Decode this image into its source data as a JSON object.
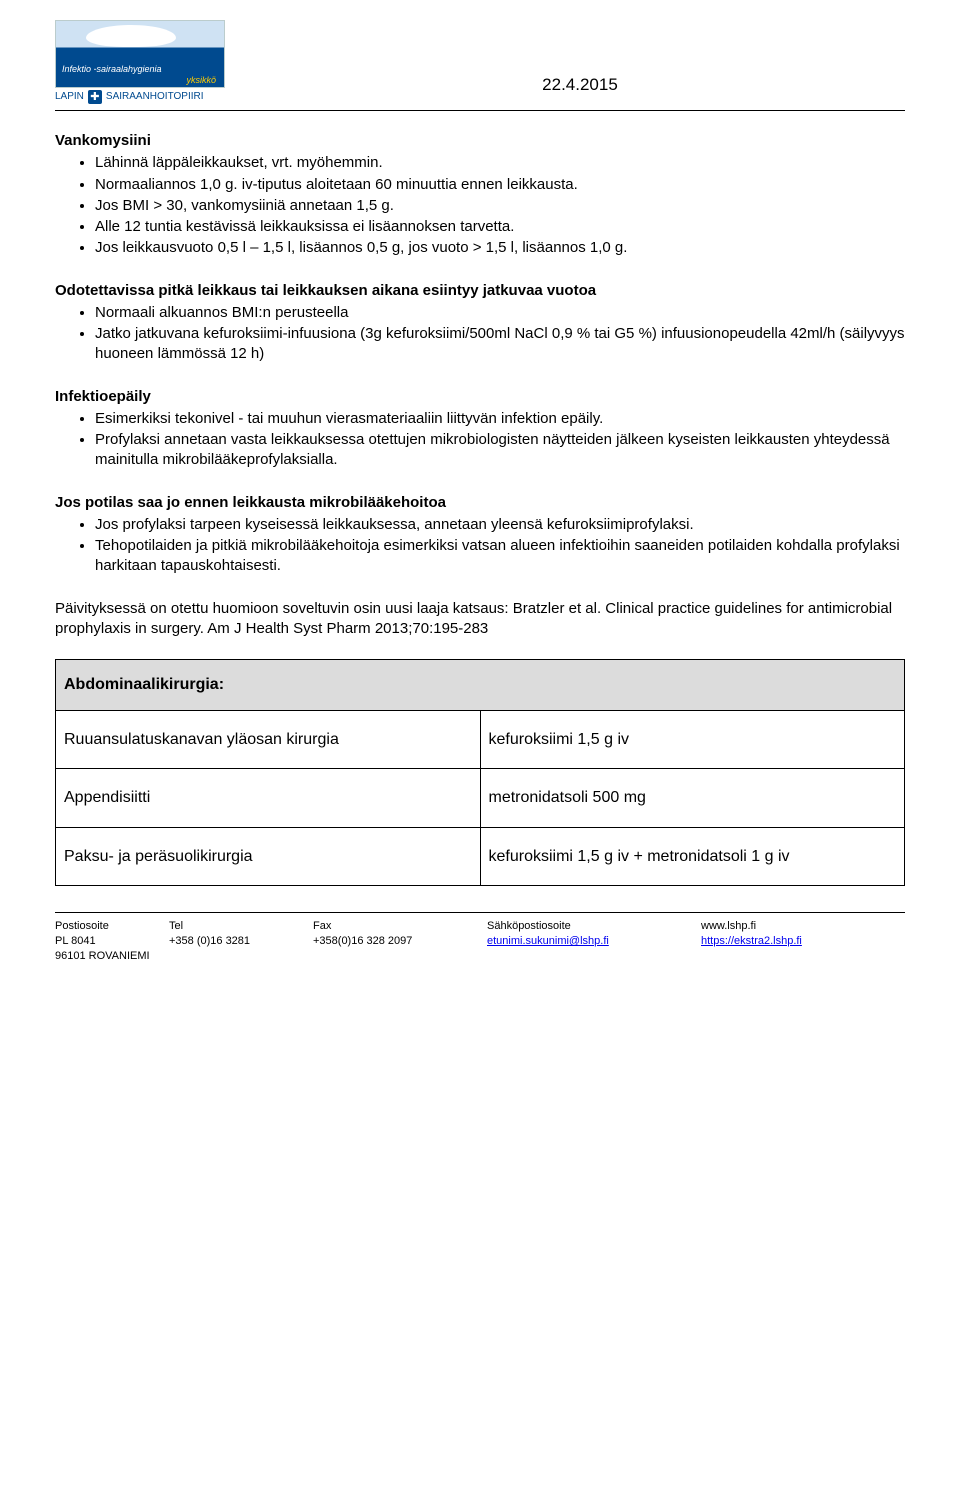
{
  "header": {
    "logo_line1": "Infektio -sairaalahygienia",
    "logo_line2": "yksikkö",
    "lapin": "LAPIN",
    "sairaanhoito": "SAIRAANHOITOPIIRI",
    "date": "22.4.2015"
  },
  "vankomysiini": {
    "title": "Vankomysiini",
    "items": [
      "Lähinnä läppäleikkaukset, vrt. myöhemmin.",
      "Normaaliannos 1,0 g. iv-tiputus aloitetaan 60 minuuttia ennen leikkausta.",
      "Jos BMI > 30, vankomysiiniä annetaan 1,5 g.",
      "Alle 12 tuntia kestävissä leikkauksissa ei lisäannoksen tarvetta.",
      "Jos leikkausvuoto 0,5 l – 1,5 l, lisäannos 0,5 g, jos vuoto > 1,5 l, lisäannos 1,0 g."
    ]
  },
  "odotettavissa": {
    "title": "Odotettavissa pitkä leikkaus tai leikkauksen aikana esiintyy jatkuvaa vuotoa",
    "items": [
      "Normaali alkuannos BMI:n perusteella",
      "Jatko jatkuvana kefuroksiimi-infuusiona (3g kefuroksiimi/500ml NaCl 0,9 % tai G5 %) infuusionopeudella 42ml/h (säilyvyys huoneen lämmössä 12 h)"
    ]
  },
  "infektioepaily": {
    "title": "Infektioepäily",
    "items": [
      "Esimerkiksi tekonivel - tai muuhun vierasmateriaaliin liittyvän infektion epäily.",
      "Profylaksi annetaan vasta leikkauksessa otettujen mikrobiologisten näytteiden jälkeen kyseisten leikkausten yhteydessä mainitulla mikrobilääkeprofylaksialla."
    ]
  },
  "jospotilas": {
    "title": "Jos potilas saa jo ennen leikkausta mikrobilääkehoitoa",
    "items": [
      "Jos profylaksi tarpeen kyseisessä leikkauksessa, annetaan yleensä kefuroksiimiprofylaksi.",
      "Tehopotilaiden ja pitkiä mikrobilääkehoitoja esimerkiksi vatsan alueen infektioihin saaneiden potilaiden kohdalla profylaksi harkitaan tapauskohtaisesti."
    ]
  },
  "reference": "Päivityksessä on otettu huomioon soveltuvin osin uusi laaja katsaus: Bratzler et al. Clinical practice guidelines for antimicrobial prophylaxis in surgery. Am J Health Syst Pharm 2013;70:195-283",
  "table": {
    "heading": "Abdominaalikirurgia:",
    "rows": [
      {
        "c1": "Ruuansulatuskanavan yläosan kirurgia",
        "c2": "kefuroksiimi 1,5 g iv"
      },
      {
        "c1": "Appendisiitti",
        "c2": "metronidatsoli 500 mg"
      },
      {
        "c1": "Paksu- ja peräsuolikirurgia",
        "c2": "kefuroksiimi 1,5 g iv + metronidatsoli 1 g iv"
      }
    ]
  },
  "footer": {
    "labels": {
      "post": "Postiosoite",
      "tel": "Tel",
      "fax": "Fax",
      "email": "Sähköpostiosoite"
    },
    "post1": "PL 8041",
    "post2": "96101 ROVANIEMI",
    "tel": "+358 (0)16 3281",
    "fax": "+358(0)16 328 2097",
    "email": "etunimi.sukunimi@lshp.fi",
    "www": "www.lshp.fi",
    "ekstra": "https://ekstra2.lshp.fi"
  }
}
